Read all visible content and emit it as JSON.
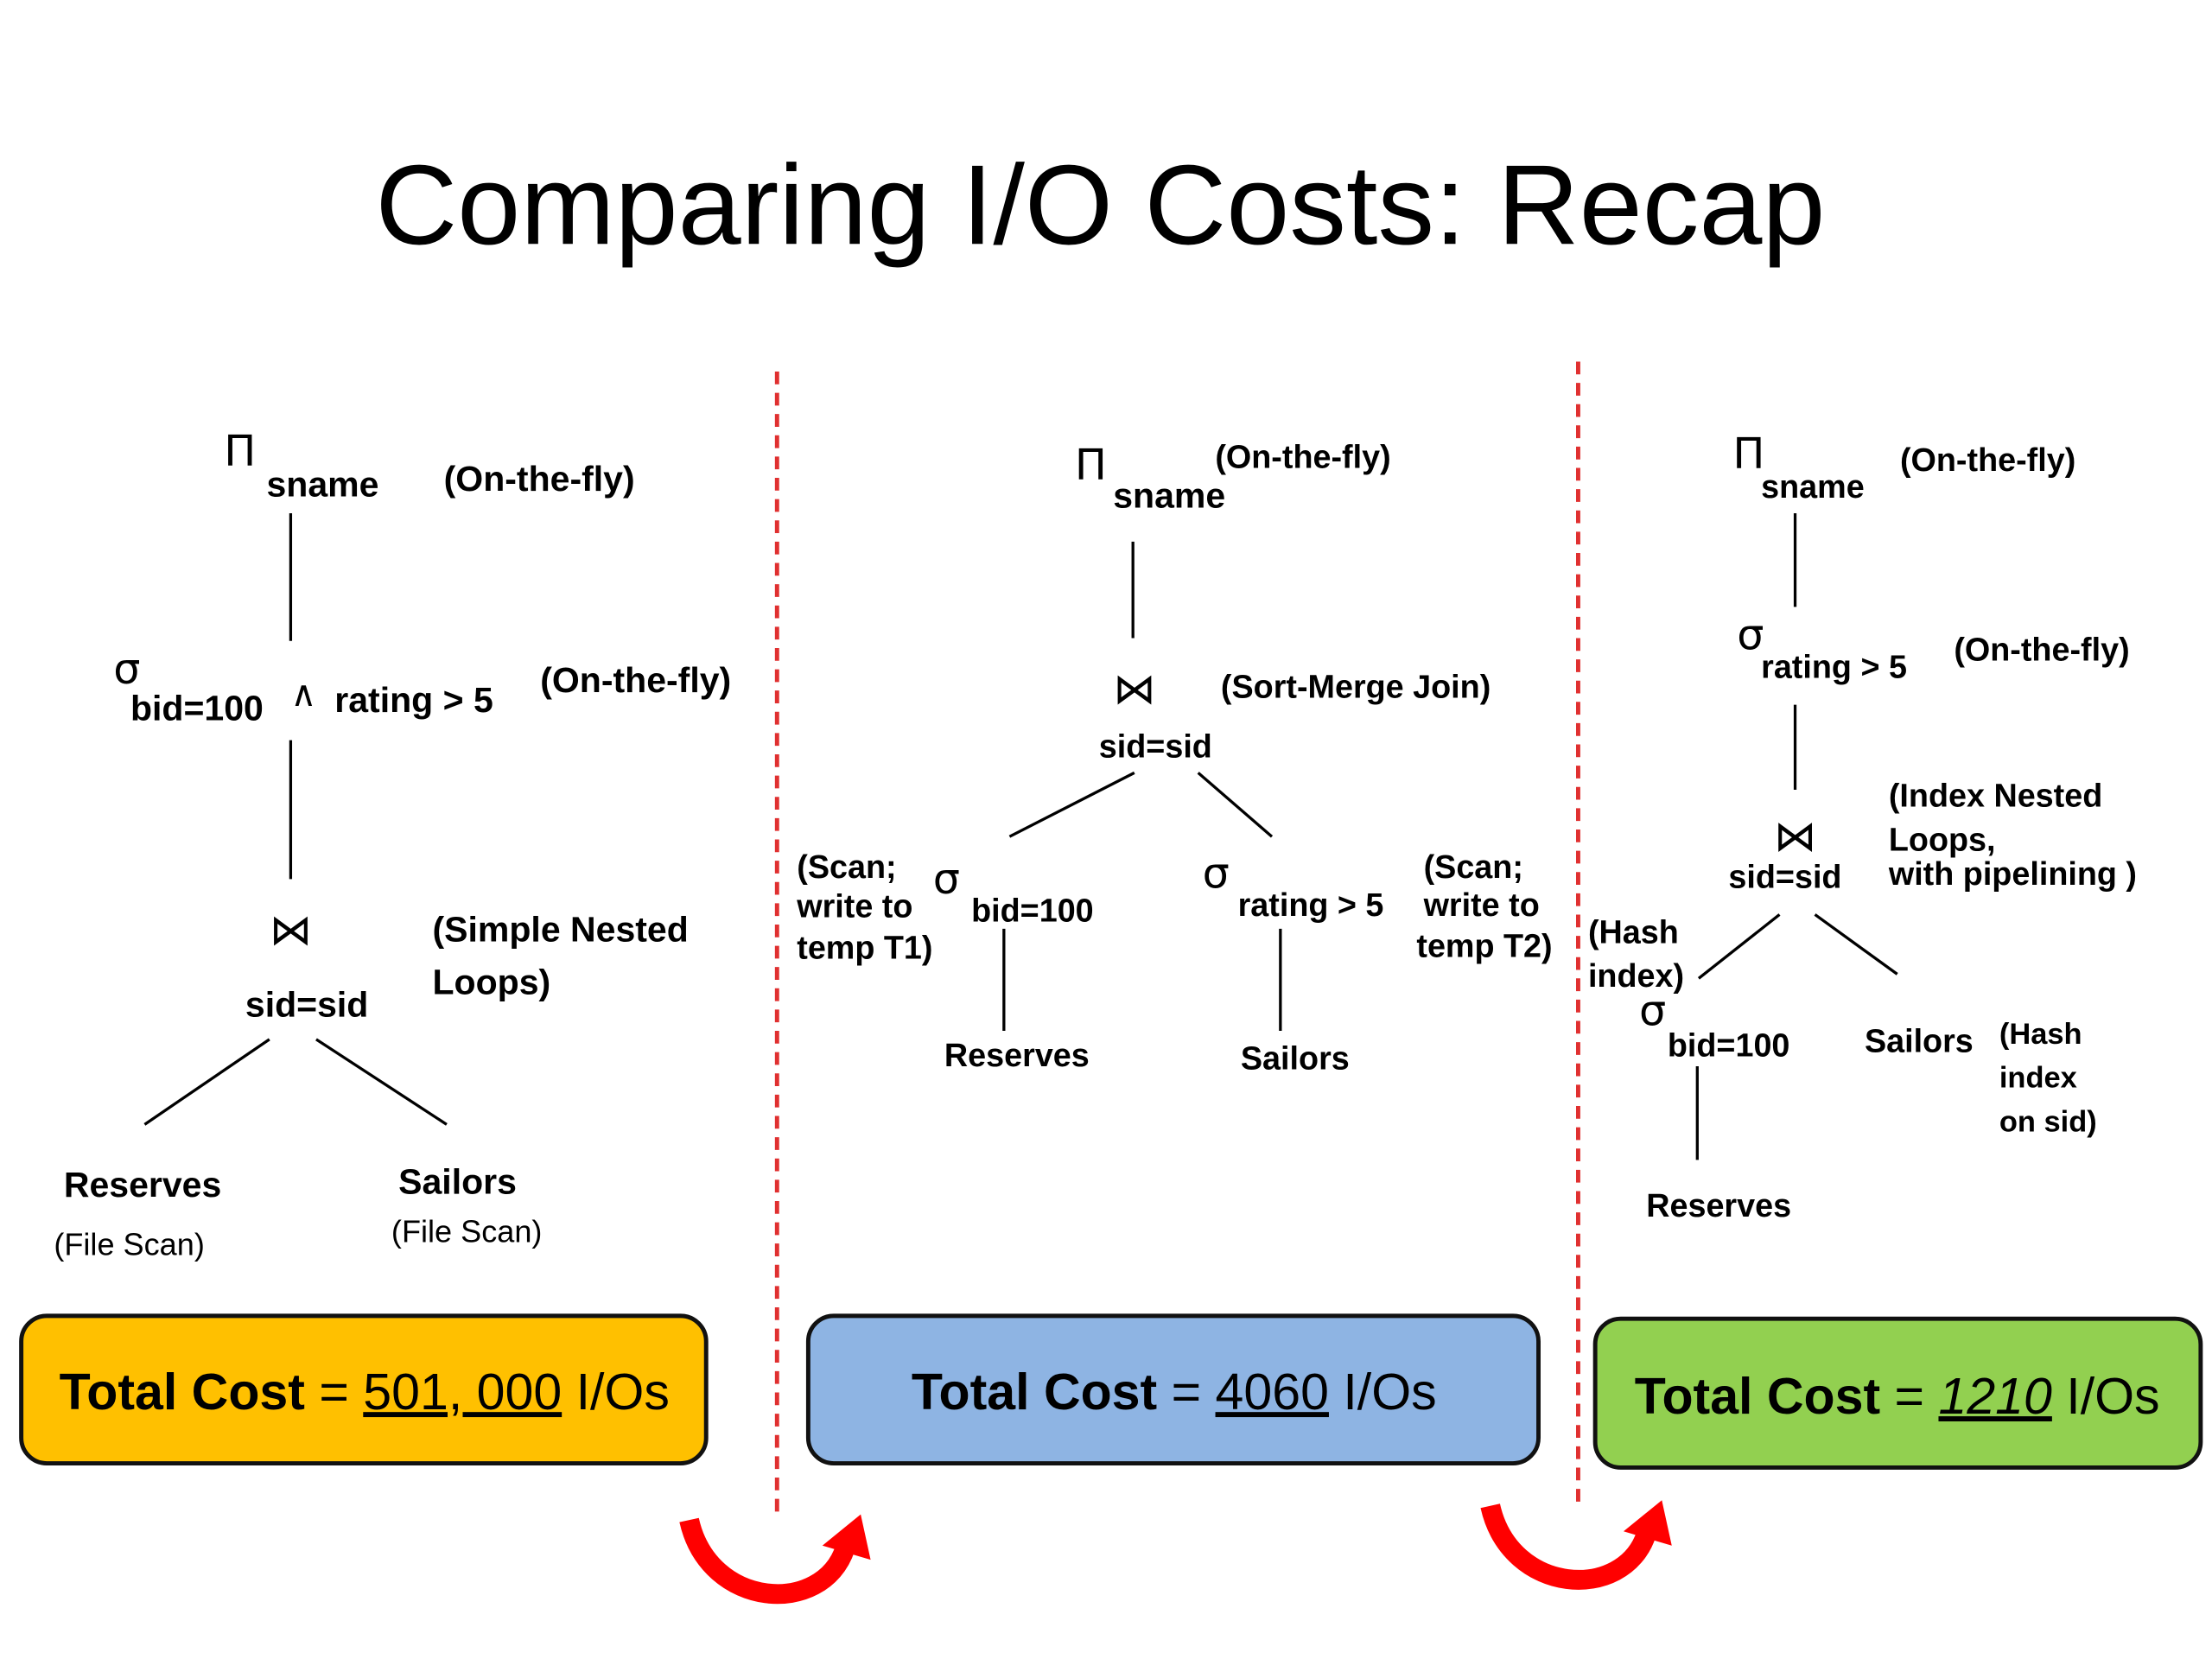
{
  "title": "Comparing I/O Costs: Recap",
  "plans": [
    {
      "project": {
        "symbol": "Π",
        "attr": "sname",
        "note": "(On-the-fly)"
      },
      "select": {
        "symbol": "σ",
        "condition": "bid=100",
        "and": "∧",
        "condition2": "rating > 5",
        "note": "(On-the-fly)"
      },
      "join": {
        "symbol": "⋈",
        "condition": "sid=sid",
        "note": [
          "(Simple Nested",
          "Loops)"
        ]
      },
      "leaves": [
        {
          "name": "Reserves",
          "note": "(File Scan)"
        },
        {
          "name": "Sailors",
          "note": "(File Scan)"
        }
      ],
      "total": {
        "label": "Total Cost",
        "equals": "=",
        "value": "501, 000",
        "unit": "I/Os"
      }
    },
    {
      "project": {
        "symbol": "Π",
        "attr": "sname",
        "note": "(On-the-fly)"
      },
      "join": {
        "symbol": "⋈",
        "condition": "sid=sid",
        "note": "(Sort-Merge Join)"
      },
      "selects": [
        {
          "symbol": "σ",
          "condition": "bid=100",
          "note": [
            "(Scan;",
            "write to",
            "temp T1)"
          ],
          "table": "Reserves"
        },
        {
          "symbol": "σ",
          "condition": "rating > 5",
          "note": [
            "(Scan;",
            "write to",
            "temp T2)"
          ],
          "table": "Sailors"
        }
      ],
      "total": {
        "label": "Total Cost",
        "equals": "=",
        "value": "4060",
        "unit": "I/Os"
      }
    },
    {
      "project": {
        "symbol": "Π",
        "attr": "sname",
        "note": "(On-the-fly)"
      },
      "select": {
        "symbol": "σ",
        "condition": "rating > 5",
        "note": "(On-the-fly)"
      },
      "join": {
        "symbol": "⋈",
        "condition": "sid=sid",
        "note": [
          "(Index Nested",
          "Loops,",
          "with pipelining )"
        ]
      },
      "outer": {
        "note": [
          "(Hash",
          "index)"
        ],
        "symbol": "σ",
        "condition": "bid=100",
        "table": "Reserves"
      },
      "inner": {
        "name": "Sailors",
        "note": [
          "(Hash",
          "index",
          "on sid)"
        ]
      },
      "total": {
        "label": "Total Cost",
        "equals": "=",
        "value": "1210",
        "unit": "I/Os"
      }
    }
  ]
}
